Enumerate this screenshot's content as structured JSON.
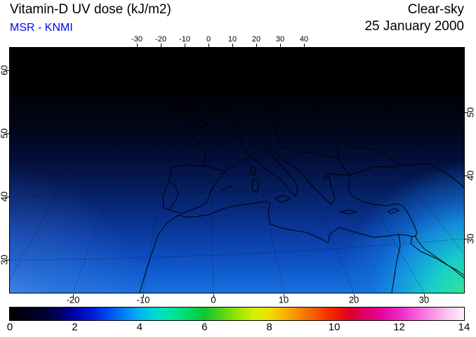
{
  "header": {
    "title": "Vitamin-D UV dose (kJ/m2)",
    "source": "MSR - KNMI",
    "condition": "Clear-sky",
    "date": "25 January 2000"
  },
  "colors": {
    "source_text": "#0008e8",
    "coastline": "#000000",
    "background": "#ffffff"
  },
  "chart_data": {
    "type": "heatmap",
    "title": "Vitamin-D UV dose (kJ/m2)",
    "condition": "Clear-sky",
    "date": "25 January 2000",
    "source": "MSR - KNMI",
    "units": "kJ/m2",
    "region": "Europe / Mediterranean / North Africa satellite-view map",
    "axes": {
      "top_lon_ticks": [
        -30,
        -20,
        -10,
        0,
        10,
        20,
        30,
        40
      ],
      "bottom_lon_ticks": [
        -20,
        -10,
        0,
        10,
        20,
        30
      ],
      "left_lat_ticks": [
        30,
        40,
        50,
        60
      ],
      "right_lat_ticks": [
        30,
        40,
        50
      ],
      "graticule_lons": [
        -30,
        -20,
        -10,
        0,
        10,
        20,
        30,
        40,
        50
      ],
      "graticule_lats": [
        30,
        40,
        50,
        60
      ],
      "grid": "dotted"
    },
    "colorbar": {
      "min": 0,
      "max": 14,
      "tick_labels": [
        0,
        2,
        4,
        6,
        8,
        10,
        12,
        14
      ],
      "stops": [
        {
          "v": 0,
          "c": "#000000"
        },
        {
          "v": 1,
          "c": "#00002e"
        },
        {
          "v": 1.5,
          "c": "#000060"
        },
        {
          "v": 2,
          "c": "#0000a8"
        },
        {
          "v": 2.5,
          "c": "#0018d8"
        },
        {
          "v": 3,
          "c": "#0048f0"
        },
        {
          "v": 3.5,
          "c": "#007cf8"
        },
        {
          "v": 4,
          "c": "#00b4f0"
        },
        {
          "v": 4.5,
          "c": "#00dcd0"
        },
        {
          "v": 5,
          "c": "#00e4a0"
        },
        {
          "v": 5.5,
          "c": "#00dc64"
        },
        {
          "v": 6,
          "c": "#0cc832"
        },
        {
          "v": 6.5,
          "c": "#50d414"
        },
        {
          "v": 7,
          "c": "#96e400"
        },
        {
          "v": 7.5,
          "c": "#d2f000"
        },
        {
          "v": 8,
          "c": "#f0e000"
        },
        {
          "v": 8.5,
          "c": "#f8b000"
        },
        {
          "v": 9,
          "c": "#f88000"
        },
        {
          "v": 9.5,
          "c": "#f85000"
        },
        {
          "v": 10,
          "c": "#f02000"
        },
        {
          "v": 10.5,
          "c": "#e00028"
        },
        {
          "v": 11,
          "c": "#e00070"
        },
        {
          "v": 11.5,
          "c": "#e408a0"
        },
        {
          "v": 12,
          "c": "#ec28c4"
        },
        {
          "v": 12.5,
          "c": "#f45cd8"
        },
        {
          "v": 13,
          "c": "#f890e4"
        },
        {
          "v": 13.5,
          "c": "#fcc4f0"
        },
        {
          "v": 14,
          "c": "#fff0fa"
        }
      ]
    },
    "field_gradient": [
      {
        "t": 0,
        "c": "#000000"
      },
      {
        "t": 0.15,
        "c": "#000000"
      },
      {
        "t": 0.25,
        "c": "#01030e"
      },
      {
        "t": 0.35,
        "c": "#02071f"
      },
      {
        "t": 0.45,
        "c": "#030e38"
      },
      {
        "t": 0.55,
        "c": "#051a57"
      },
      {
        "t": 0.65,
        "c": "#072878"
      },
      {
        "t": 0.75,
        "c": "#0a389c"
      },
      {
        "t": 0.85,
        "c": "#0d4cbe"
      },
      {
        "t": 0.93,
        "c": "#115fd2"
      },
      {
        "t": 1,
        "c": "#1a70dc"
      }
    ],
    "southeast_glow": [
      {
        "t": 0,
        "c": "#62f27c",
        "o": 1
      },
      {
        "t": 0.14,
        "c": "#2ee49a",
        "o": 1
      },
      {
        "t": 0.3,
        "c": "#17cdc9",
        "o": 1
      },
      {
        "t": 0.48,
        "c": "#1495e2",
        "o": 0.9
      },
      {
        "t": 0.62,
        "c": "#1173d8",
        "o": 0.55
      },
      {
        "t": 0.8,
        "c": "#1173d8",
        "o": 0
      },
      {
        "t": 1,
        "c": "#1173d8",
        "o": 0
      }
    ],
    "southwest_glow": [
      {
        "t": 0,
        "c": "#79aaea",
        "o": 0.55
      },
      {
        "t": 0.4,
        "c": "#4f86dd",
        "o": 0.35
      },
      {
        "t": 1,
        "c": "#4f86dd",
        "o": 0
      }
    ],
    "field_summary": {
      "description": "Clear-sky vitamin-D UV dose is ~0 kJ/m2 north of about 55N (black), increasing smoothly southward through dark blue and blue; brightest values (cyan to green, about 5-6 kJ/m2) occur in the far southeast corner of the map near the Red Sea.",
      "lat_profile": {
        "lat": [
          60,
          55,
          50,
          45,
          40,
          35,
          30
        ],
        "dose": [
          0.0,
          0.2,
          0.5,
          1.0,
          1.6,
          2.4,
          3.3
        ]
      },
      "max_dose_southeast": 6
    }
  }
}
